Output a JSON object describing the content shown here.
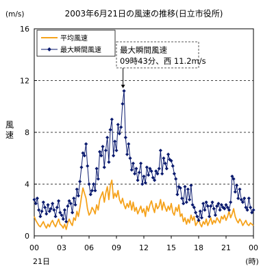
{
  "chart_data": {
    "type": "line",
    "title": "2003年6月21日の風速の推移(日立市役所)",
    "y_unit": "(m/s)",
    "ylabel": "風速",
    "x_unit": "(時)",
    "date_label": "21日",
    "ylim": [
      0,
      16
    ],
    "y_ticks": [
      "0",
      "4",
      "8",
      "12",
      "16"
    ],
    "xlim": [
      0,
      24
    ],
    "x_ticks": [
      "00",
      "03",
      "06",
      "09",
      "12",
      "15",
      "18",
      "21",
      "00"
    ],
    "x_tick_hours": [
      0,
      3,
      6,
      9,
      12,
      15,
      18,
      21,
      24
    ],
    "y_gridlines": [
      4,
      8,
      12
    ],
    "legend_position": "top-left",
    "annotation": {
      "title": "最大瞬間風速",
      "text": "09時43分、西 11.2m/s",
      "x": 9.72,
      "y": 11.2
    },
    "series": [
      {
        "name": "平均風速",
        "color": "#f5a21b",
        "marker": "none",
        "x": [
          0,
          0.17,
          0.33,
          0.5,
          0.67,
          0.83,
          1,
          1.17,
          1.33,
          1.5,
          1.67,
          1.83,
          2,
          2.17,
          2.33,
          2.5,
          2.67,
          2.83,
          3,
          3.17,
          3.33,
          3.5,
          3.67,
          3.83,
          4,
          4.17,
          4.33,
          4.5,
          4.67,
          4.83,
          5,
          5.17,
          5.33,
          5.5,
          5.67,
          5.83,
          6,
          6.17,
          6.33,
          6.5,
          6.67,
          6.83,
          7,
          7.17,
          7.33,
          7.5,
          7.67,
          7.83,
          8,
          8.17,
          8.33,
          8.5,
          8.67,
          8.83,
          9,
          9.17,
          9.33,
          9.5,
          9.67,
          9.83,
          10,
          10.17,
          10.33,
          10.5,
          10.67,
          10.83,
          11,
          11.17,
          11.33,
          11.5,
          11.67,
          11.83,
          12,
          12.17,
          12.33,
          12.5,
          12.67,
          12.83,
          13,
          13.17,
          13.33,
          13.5,
          13.67,
          13.83,
          14,
          14.17,
          14.33,
          14.5,
          14.67,
          14.83,
          15,
          15.17,
          15.33,
          15.5,
          15.67,
          15.83,
          16,
          16.17,
          16.33,
          16.5,
          16.67,
          16.83,
          17,
          17.17,
          17.33,
          17.5,
          17.67,
          17.83,
          18,
          18.17,
          18.33,
          18.5,
          18.67,
          18.83,
          19,
          19.17,
          19.33,
          19.5,
          19.67,
          19.83,
          20,
          20.17,
          20.33,
          20.5,
          20.67,
          20.83,
          21,
          21.17,
          21.33,
          21.5,
          21.67,
          21.83,
          22,
          22.17,
          22.33,
          22.5,
          22.67,
          22.83,
          23,
          23.17,
          23.33,
          23.5,
          23.67,
          23.83,
          24
        ],
        "values": [
          1.5,
          1.2,
          1.0,
          0.8,
          0.7,
          0.9,
          1.1,
          0.8,
          0.6,
          0.9,
          0.7,
          1.0,
          1.2,
          0.9,
          0.7,
          1.0,
          1.3,
          0.9,
          0.8,
          0.6,
          0.9,
          0.5,
          1.0,
          1.3,
          1.0,
          0.8,
          1.4,
          1.2,
          1.9,
          1.5,
          2.2,
          3.0,
          3.7,
          3.3,
          2.9,
          2.1,
          1.6,
          1.8,
          2.2,
          2.0,
          1.7,
          2.4,
          2.0,
          2.8,
          3.1,
          3.4,
          2.6,
          3.3,
          3.8,
          2.8,
          3.9,
          4.3,
          2.9,
          3.3,
          3.0,
          3.5,
          2.8,
          2.5,
          2.9,
          2.4,
          2.1,
          2.5,
          2.2,
          2.7,
          2.0,
          2.6,
          1.9,
          2.2,
          1.7,
          2.0,
          2.3,
          1.8,
          2.1,
          1.5,
          2.3,
          1.9,
          2.4,
          2.7,
          2.2,
          1.8,
          2.5,
          2.1,
          2.3,
          2.8,
          2.0,
          2.6,
          2.2,
          1.9,
          2.3,
          2.0,
          2.5,
          1.8,
          1.6,
          2.2,
          1.9,
          2.4,
          1.5,
          1.7,
          1.1,
          1.4,
          0.9,
          1.3,
          1.0,
          1.6,
          1.2,
          1.5,
          0.8,
          1.0,
          1.3,
          0.9,
          0.7,
          1.1,
          0.9,
          1.3,
          0.8,
          1.1,
          1.4,
          0.9,
          1.2,
          1.0,
          1.4,
          1.2,
          1.0,
          1.5,
          1.3,
          1.6,
          1.2,
          1.5,
          1.9,
          1.4,
          1.7,
          2.1,
          1.5,
          1.2,
          1.0,
          1.3,
          1.1,
          0.8,
          1.0,
          1.2,
          0.9,
          0.8,
          1.0,
          0.9,
          0.8
        ]
      },
      {
        "name": "最大瞬間風速",
        "color": "#0a1a6e",
        "marker": "diamond",
        "x": [
          0,
          0.17,
          0.33,
          0.5,
          0.67,
          0.83,
          1,
          1.17,
          1.33,
          1.5,
          1.67,
          1.83,
          2,
          2.17,
          2.33,
          2.5,
          2.67,
          2.83,
          3,
          3.17,
          3.33,
          3.5,
          3.67,
          3.83,
          4,
          4.17,
          4.33,
          4.5,
          4.67,
          4.83,
          5,
          5.17,
          5.33,
          5.5,
          5.67,
          5.83,
          6,
          6.17,
          6.33,
          6.5,
          6.67,
          6.83,
          7,
          7.17,
          7.33,
          7.5,
          7.67,
          7.83,
          8,
          8.17,
          8.33,
          8.5,
          8.67,
          8.83,
          9,
          9.17,
          9.33,
          9.5,
          9.67,
          9.83,
          10,
          10.17,
          10.33,
          10.5,
          10.67,
          10.83,
          11,
          11.17,
          11.33,
          11.5,
          11.67,
          11.83,
          12,
          12.17,
          12.33,
          12.5,
          12.67,
          12.83,
          13,
          13.17,
          13.33,
          13.5,
          13.67,
          13.83,
          14,
          14.17,
          14.33,
          14.5,
          14.67,
          14.83,
          15,
          15.17,
          15.33,
          15.5,
          15.67,
          15.83,
          16,
          16.17,
          16.33,
          16.5,
          16.67,
          16.83,
          17,
          17.17,
          17.33,
          17.5,
          17.67,
          17.83,
          18,
          18.17,
          18.33,
          18.5,
          18.67,
          18.83,
          19,
          19.17,
          19.33,
          19.5,
          19.67,
          19.83,
          20,
          20.17,
          20.33,
          20.5,
          20.67,
          20.83,
          21,
          21.17,
          21.33,
          21.5,
          21.67,
          21.83,
          22,
          22.17,
          22.33,
          22.5,
          22.67,
          22.83,
          23,
          23.17,
          23.33,
          23.5,
          23.67,
          23.83,
          24
        ],
        "values": [
          2.8,
          2.5,
          2.9,
          2.0,
          1.5,
          1.9,
          2.6,
          2.2,
          1.7,
          2.4,
          1.9,
          2.1,
          2.5,
          2.0,
          1.5,
          2.2,
          2.7,
          1.8,
          1.6,
          1.3,
          2.0,
          1.1,
          2.3,
          2.7,
          2.5,
          1.8,
          2.9,
          2.4,
          3.6,
          3.1,
          4.2,
          5.3,
          6.4,
          6.2,
          7.1,
          5.4,
          4.0,
          3.2,
          3.5,
          4.0,
          3.5,
          5.2,
          4.4,
          6.5,
          6.2,
          6.9,
          5.3,
          6.6,
          7.6,
          5.7,
          8.2,
          9.0,
          6.2,
          7.3,
          6.6,
          8.6,
          7.9,
          8.4,
          10.2,
          11.2,
          7.6,
          6.3,
          7.1,
          6.0,
          5.1,
          5.6,
          4.8,
          5.2,
          4.3,
          4.9,
          5.6,
          4.0,
          4.6,
          4.1,
          5.3,
          4.7,
          5.2,
          5.0,
          4.5,
          4.3,
          5.0,
          4.8,
          5.2,
          6.6,
          4.8,
          6.0,
          5.6,
          5.2,
          6.3,
          5.9,
          5.8,
          5.4,
          4.8,
          4.4,
          3.2,
          3.8,
          3.7,
          2.9,
          2.5,
          3.8,
          2.6,
          3.6,
          2.8,
          3.9,
          2.4,
          2.2,
          1.8,
          1.5,
          1.2,
          1.9,
          1.4,
          2.5,
          2.0,
          2.6,
          2.3,
          1.5,
          2.3,
          2.6,
          2.1,
          1.6,
          2.3,
          2.5,
          2.0,
          2.4,
          2.2,
          2.1,
          2.4,
          2.2,
          2.0,
          2.6,
          4.6,
          4.4,
          3.4,
          3.9,
          2.9,
          3.6,
          2.8,
          2.6,
          2.9,
          2.2,
          2.0,
          2.9,
          2.2,
          1.8,
          2.0
        ]
      }
    ]
  }
}
